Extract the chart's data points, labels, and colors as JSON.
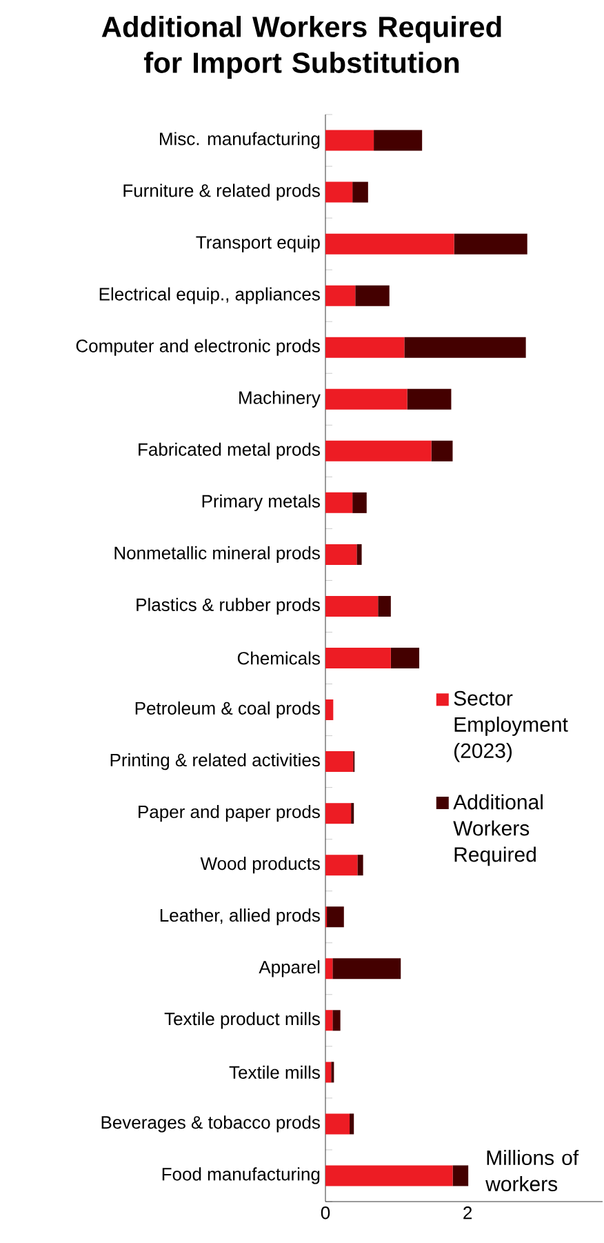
{
  "chart_data": {
    "type": "bar",
    "orientation": "horizontal",
    "stacked": true,
    "title": "Additional Workers Required for Import Substitution",
    "categories": [
      "Misc. manufacturing",
      "Furniture & related prods",
      "Transport equip",
      "Electrical equip., appliances",
      "Computer and electronic prods",
      "Machinery",
      "Fabricated metal prods",
      "Primary metals",
      "Nonmetallic mineral prods",
      "Plastics & rubber prods",
      "Chemicals",
      "Petroleum & coal prods",
      "Printing & related activities",
      "Paper and paper prods",
      "Wood products",
      "Leather, allied prods",
      "Apparel",
      "Textile product mills",
      "Textile mills",
      "Beverages & tobacco prods",
      "Food manufacturing"
    ],
    "series": [
      {
        "name": "Sector Employment (2023)",
        "color": "#ed1c24",
        "values": [
          0.68,
          0.38,
          1.81,
          0.42,
          1.11,
          1.15,
          1.49,
          0.38,
          0.44,
          0.74,
          0.92,
          0.11,
          0.39,
          0.36,
          0.45,
          0.02,
          0.1,
          0.1,
          0.08,
          0.34,
          1.79
        ]
      },
      {
        "name": "Additional Workers Required",
        "color": "#440000",
        "values": [
          0.68,
          0.22,
          1.03,
          0.48,
          1.71,
          0.62,
          0.3,
          0.2,
          0.07,
          0.18,
          0.4,
          0.0,
          0.02,
          0.04,
          0.08,
          0.24,
          0.96,
          0.11,
          0.04,
          0.06,
          0.22
        ]
      }
    ],
    "xlim": [
      0,
      3.9
    ],
    "xticks": [
      0,
      2
    ],
    "legend": "right",
    "grid": false,
    "annotations": [
      "Millions of workers"
    ]
  }
}
